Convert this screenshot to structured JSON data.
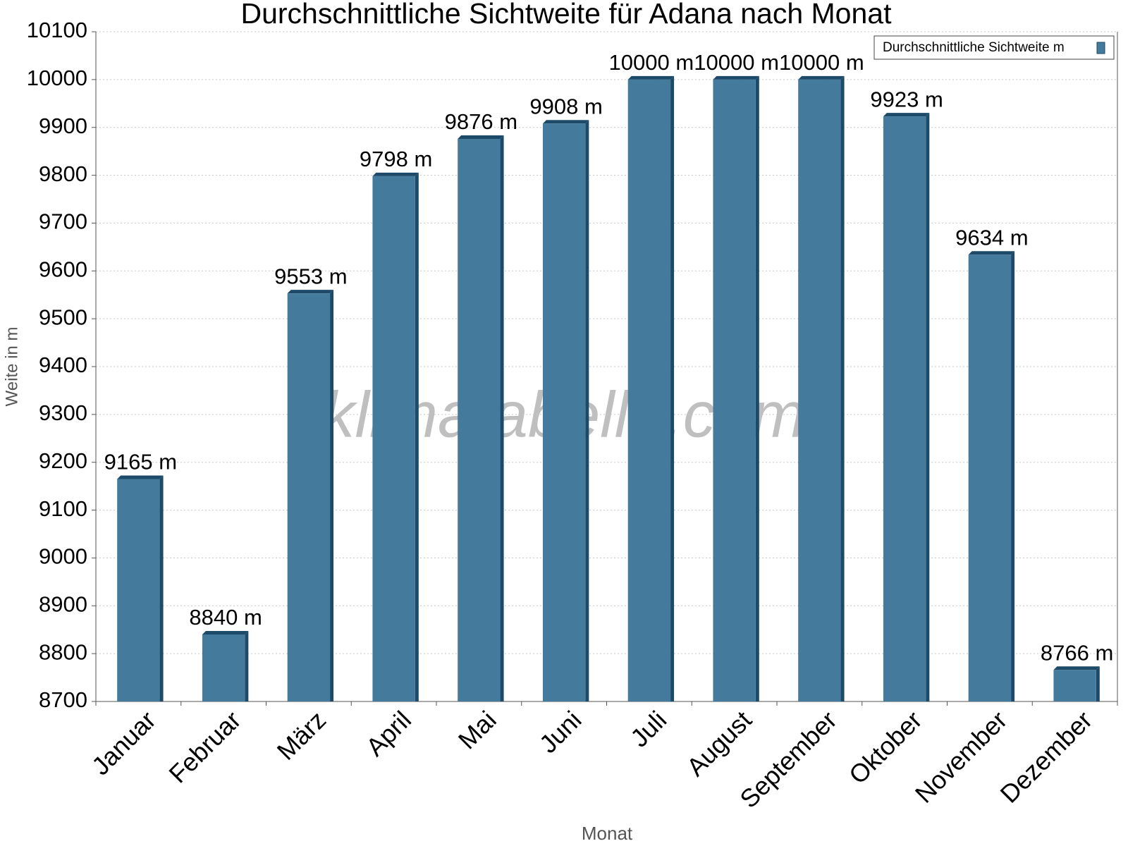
{
  "chart_data": {
    "type": "bar",
    "title": "Durchschnittliche Sichtweite für Adana nach Monat",
    "x_label": "Monat",
    "y_label": "Weite in m",
    "watermark": "klimatabelle.com",
    "categories": [
      "Januar",
      "Februar",
      "März",
      "April",
      "Mai",
      "Juni",
      "Juli",
      "August",
      "September",
      "Oktober",
      "November",
      "Dezember"
    ],
    "series": [
      {
        "name": "Durchschnittliche Sichtweite m",
        "color": "#447a9c",
        "values": [
          9165,
          8840,
          9553,
          9798,
          9876,
          9908,
          10000,
          10000,
          10000,
          9923,
          9634,
          8766
        ],
        "value_labels": [
          "9165 m",
          "8840 m",
          "9553 m",
          "9798 m",
          "9876 m",
          "9908 m",
          "10000 m",
          "10000 m",
          "10000 m",
          "9923 m",
          "9634 m",
          "8766 m"
        ]
      }
    ],
    "ylim": [
      8700,
      10100
    ],
    "yticks": [
      8700,
      8800,
      8900,
      9000,
      9100,
      9200,
      9300,
      9400,
      9500,
      9600,
      9700,
      9800,
      9900,
      10000,
      10100
    ],
    "grid": true,
    "legend": "top-right"
  }
}
